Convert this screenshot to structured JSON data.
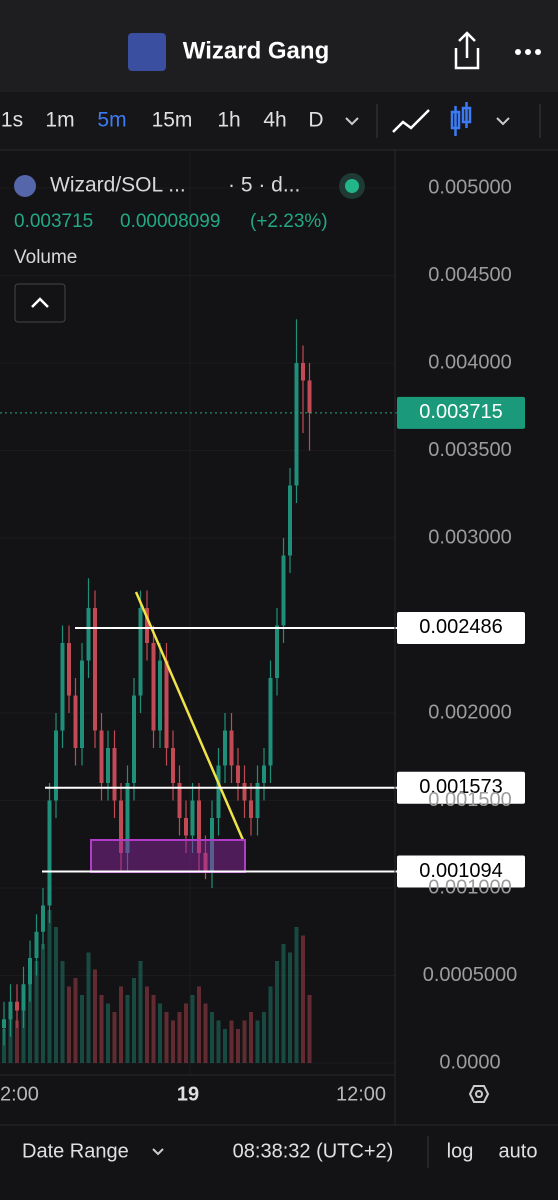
{
  "header": {
    "title": "Wizard Gang"
  },
  "toolbar": {
    "timeframes": [
      "1s",
      "1m",
      "5m",
      "15m",
      "1h",
      "4h",
      "D"
    ],
    "selected": "5m"
  },
  "legend": {
    "symbol": "Wizard/SOL ...",
    "interval": "· 5 · d...",
    "price": "0.003715",
    "change": "0.00008099",
    "change_pct": "(+2.23%)",
    "volume_label": "Volume"
  },
  "chart_data": {
    "type": "candlestick",
    "up_color": "#1f8f7a",
    "down_color": "#c24a54",
    "ylim": [
      0,
      0.00535
    ],
    "yticks": [
      {
        "value": 0.005,
        "label": "0.005000"
      },
      {
        "value": 0.0045,
        "label": "0.004500"
      },
      {
        "value": 0.004,
        "label": "0.004000"
      },
      {
        "value": 0.0035,
        "label": "0.003500"
      },
      {
        "value": 0.003,
        "label": "0.003000"
      },
      {
        "value": 0.002,
        "label": "0.002000"
      },
      {
        "value": 0.0015,
        "label": "0.001500"
      },
      {
        "value": 0.001,
        "label": "0.001000"
      },
      {
        "value": 0.0005,
        "label": "0.0005000"
      },
      {
        "value": 0,
        "label": "0.0000"
      }
    ],
    "x_labels": [
      "2:00",
      "19",
      "12:00"
    ],
    "open": [
      0.0002,
      0.00025,
      0.00035,
      0.0003,
      0.00045,
      0.0006,
      0.00075,
      0.0009,
      0.0015,
      0.0019,
      0.0024,
      0.0021,
      0.0018,
      0.0023,
      0.0026,
      0.0019,
      0.0016,
      0.0018,
      0.0015,
      0.0012,
      0.0016,
      0.0021,
      0.0026,
      0.0024,
      0.0019,
      0.0023,
      0.0018,
      0.0016,
      0.0014,
      0.0013,
      0.0015,
      0.0012,
      0.0011,
      0.0014,
      0.0017,
      0.0019,
      0.0017,
      0.0016,
      0.0015,
      0.0014,
      0.0016,
      0.0017,
      0.0022,
      0.0025,
      0.0029,
      0.0033,
      0.004,
      0.0039
    ],
    "high": [
      0.00035,
      0.00045,
      0.00045,
      0.00055,
      0.0007,
      0.00085,
      0.001,
      0.0016,
      0.002,
      0.0025,
      0.0025,
      0.0022,
      0.0024,
      0.00277,
      0.0027,
      0.002,
      0.0019,
      0.0019,
      0.0016,
      0.0017,
      0.0022,
      0.0027,
      0.0027,
      0.0025,
      0.0024,
      0.0024,
      0.0019,
      0.0017,
      0.0015,
      0.0016,
      0.0016,
      0.0013,
      0.0015,
      0.0018,
      0.002,
      0.002,
      0.0018,
      0.0017,
      0.0016,
      0.0017,
      0.0018,
      0.0023,
      0.0026,
      0.003,
      0.0034,
      0.00425,
      0.0041,
      0.004
    ],
    "low": [
      0.0001,
      0.00015,
      0.0002,
      0.0002,
      0.00035,
      0.0005,
      0.00065,
      0.0008,
      0.0014,
      0.0018,
      0.002,
      0.0017,
      0.0017,
      0.0022,
      0.0018,
      0.0015,
      0.0015,
      0.0014,
      0.0011,
      0.0011,
      0.0015,
      0.002,
      0.0023,
      0.0018,
      0.0018,
      0.0017,
      0.0015,
      0.0013,
      0.0012,
      0.0012,
      0.0011,
      0.00105,
      0.001,
      0.0013,
      0.0016,
      0.0016,
      0.0015,
      0.0014,
      0.0013,
      0.0013,
      0.0015,
      0.0016,
      0.0021,
      0.0024,
      0.0028,
      0.0032,
      0.0036,
      0.0035
    ],
    "close": [
      0.00025,
      0.00035,
      0.0003,
      0.00045,
      0.0006,
      0.00075,
      0.0009,
      0.0015,
      0.0019,
      0.0024,
      0.0021,
      0.0018,
      0.0023,
      0.0026,
      0.0019,
      0.0016,
      0.0018,
      0.0015,
      0.0012,
      0.0016,
      0.0021,
      0.0026,
      0.0024,
      0.0019,
      0.0023,
      0.0018,
      0.0016,
      0.0014,
      0.0013,
      0.0015,
      0.0012,
      0.0011,
      0.0014,
      0.0017,
      0.0019,
      0.0017,
      0.0016,
      0.0015,
      0.0014,
      0.0016,
      0.0017,
      0.0022,
      0.0025,
      0.0029,
      0.0033,
      0.004,
      0.0039,
      0.003715
    ],
    "volume": [
      20,
      35,
      25,
      40,
      55,
      60,
      70,
      90,
      80,
      60,
      45,
      50,
      40,
      65,
      55,
      40,
      35,
      30,
      45,
      40,
      50,
      60,
      45,
      40,
      35,
      30,
      25,
      30,
      35,
      40,
      45,
      35,
      30,
      25,
      20,
      25,
      20,
      25,
      30,
      25,
      30,
      45,
      60,
      70,
      65,
      80,
      75,
      40
    ],
    "volume_lim": [
      0,
      100
    ],
    "last_price": 0.003715,
    "levels": [
      0.002486,
      0.001573,
      0.001094
    ]
  },
  "footer": {
    "date_range": "Date Range",
    "time": "08:38:32 (UTC+2)",
    "log": "log",
    "auto": "auto"
  }
}
